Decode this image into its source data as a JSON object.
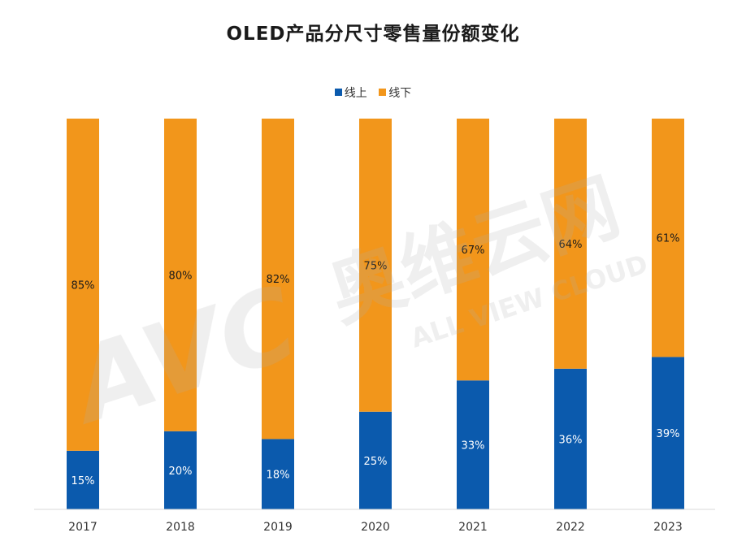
{
  "chart_data": {
    "type": "bar",
    "stacked": true,
    "title": "OLED产品分尺寸零售量份额变化",
    "categories": [
      "2017",
      "2018",
      "2019",
      "2020",
      "2021",
      "2022",
      "2023"
    ],
    "series": [
      {
        "name": "线上",
        "color": "#0b5aad",
        "values": [
          15,
          20,
          18,
          25,
          33,
          36,
          39
        ],
        "labels": [
          "15%",
          "20%",
          "18%",
          "25%",
          "33%",
          "36%",
          "39%"
        ]
      },
      {
        "name": "线下",
        "color": "#f2961b",
        "values": [
          85,
          80,
          82,
          75,
          67,
          64,
          61
        ],
        "labels": [
          "85%",
          "80%",
          "82%",
          "75%",
          "67%",
          "64%",
          "61%"
        ]
      }
    ],
    "ylim": [
      0,
      100
    ],
    "xlabel": "",
    "ylabel": "",
    "legend": "top-center",
    "grid": false
  },
  "watermark": {
    "logo_text": "AVC",
    "brand_text": "奥维云网",
    "sub_text": "ALL VIEW CLOUD"
  }
}
